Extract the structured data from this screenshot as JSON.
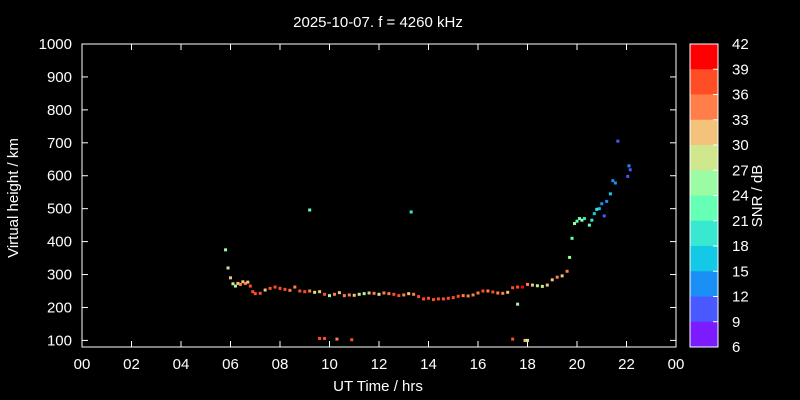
{
  "chart_data": {
    "type": "scatter",
    "title": "2025-10-07. f = 4260 kHz",
    "xlabel": "UT Time / hrs",
    "ylabel": "Virtual height / km",
    "xlim": [
      0,
      24
    ],
    "ylim": [
      80,
      1000
    ],
    "x_ticks": [
      "00",
      "02",
      "04",
      "06",
      "08",
      "10",
      "12",
      "14",
      "16",
      "18",
      "20",
      "22",
      "00"
    ],
    "y_ticks": [
      100,
      200,
      300,
      400,
      500,
      600,
      700,
      800,
      900,
      1000
    ],
    "colorbar": {
      "label": "SNR / dB",
      "min": 6,
      "max": 42,
      "ticks": [
        42,
        39,
        36,
        33,
        30,
        27,
        24,
        21,
        18,
        15,
        12,
        9,
        6
      ],
      "colors": [
        "#ff0000",
        "#ff4d26",
        "#ff7e4a",
        "#f4c27a",
        "#cfe88e",
        "#9cfca4",
        "#66ffb6",
        "#38e8d0",
        "#14c9e6",
        "#1a8ff6",
        "#4a58ff",
        "#7a1cff"
      ]
    },
    "grid": false,
    "legend": "colorbar-right",
    "points": [
      [
        5.8,
        375,
        26
      ],
      [
        5.9,
        320,
        28
      ],
      [
        6.0,
        290,
        30
      ],
      [
        6.1,
        272,
        27
      ],
      [
        6.2,
        265,
        25
      ],
      [
        6.3,
        273,
        30
      ],
      [
        6.4,
        270,
        33
      ],
      [
        6.5,
        278,
        32
      ],
      [
        6.6,
        273,
        35
      ],
      [
        6.7,
        277,
        32
      ],
      [
        6.8,
        265,
        36
      ],
      [
        6.9,
        248,
        38
      ],
      [
        7.0,
        242,
        37
      ],
      [
        7.2,
        243,
        36
      ],
      [
        7.4,
        253,
        31
      ],
      [
        7.6,
        258,
        36
      ],
      [
        7.8,
        262,
        38
      ],
      [
        8.0,
        258,
        36
      ],
      [
        8.2,
        255,
        37
      ],
      [
        8.4,
        252,
        35
      ],
      [
        8.6,
        262,
        33
      ],
      [
        8.8,
        250,
        36
      ],
      [
        9.0,
        248,
        38
      ],
      [
        9.2,
        250,
        35
      ],
      [
        9.4,
        246,
        28
      ],
      [
        9.6,
        248,
        32
      ],
      [
        9.8,
        240,
        36
      ],
      [
        10.0,
        236,
        26
      ],
      [
        10.2,
        240,
        33
      ],
      [
        10.4,
        245,
        30
      ],
      [
        10.6,
        236,
        34
      ],
      [
        10.8,
        238,
        33
      ],
      [
        11.0,
        237,
        30
      ],
      [
        11.2,
        240,
        27
      ],
      [
        11.4,
        242,
        26
      ],
      [
        11.6,
        244,
        30
      ],
      [
        11.8,
        243,
        33
      ],
      [
        12.0,
        240,
        28
      ],
      [
        12.2,
        244,
        35
      ],
      [
        12.4,
        242,
        33
      ],
      [
        12.6,
        240,
        36
      ],
      [
        12.8,
        236,
        37
      ],
      [
        13.0,
        238,
        35
      ],
      [
        13.2,
        242,
        30
      ],
      [
        13.4,
        240,
        33
      ],
      [
        13.6,
        233,
        36
      ],
      [
        13.8,
        226,
        38
      ],
      [
        14.0,
        228,
        37
      ],
      [
        14.2,
        224,
        38
      ],
      [
        14.4,
        226,
        37
      ],
      [
        14.6,
        226,
        38
      ],
      [
        14.8,
        228,
        37
      ],
      [
        15.0,
        230,
        36
      ],
      [
        15.2,
        234,
        37
      ],
      [
        15.4,
        236,
        35
      ],
      [
        15.6,
        235,
        34
      ],
      [
        15.8,
        238,
        33
      ],
      [
        16.0,
        244,
        35
      ],
      [
        16.2,
        250,
        36
      ],
      [
        16.4,
        250,
        33
      ],
      [
        16.6,
        247,
        36
      ],
      [
        16.8,
        244,
        35
      ],
      [
        17.0,
        243,
        33
      ],
      [
        17.2,
        246,
        30
      ],
      [
        17.4,
        260,
        37
      ],
      [
        17.6,
        262,
        38
      ],
      [
        17.8,
        262,
        39
      ],
      [
        18.0,
        270,
        33
      ],
      [
        18.2,
        268,
        30
      ],
      [
        18.4,
        266,
        29
      ],
      [
        18.6,
        264,
        28
      ],
      [
        18.8,
        268,
        32
      ],
      [
        19.0,
        284,
        32
      ],
      [
        19.2,
        292,
        33
      ],
      [
        19.4,
        296,
        32
      ],
      [
        19.6,
        310,
        35
      ],
      [
        19.7,
        352,
        25
      ],
      [
        19.8,
        410,
        22
      ],
      [
        19.9,
        455,
        24
      ],
      [
        20.0,
        462,
        22
      ],
      [
        20.1,
        470,
        21
      ],
      [
        20.2,
        465,
        24
      ],
      [
        20.3,
        470,
        20
      ],
      [
        20.5,
        450,
        22
      ],
      [
        20.6,
        465,
        18
      ],
      [
        20.7,
        485,
        15
      ],
      [
        20.8,
        498,
        20
      ],
      [
        20.9,
        500,
        16
      ],
      [
        21.0,
        515,
        12
      ],
      [
        21.1,
        478,
        10
      ],
      [
        21.2,
        522,
        14
      ],
      [
        21.35,
        545,
        15
      ],
      [
        21.45,
        585,
        14
      ],
      [
        21.55,
        578,
        13
      ],
      [
        21.65,
        705,
        11
      ],
      [
        22.05,
        598,
        11
      ],
      [
        22.1,
        630,
        12
      ],
      [
        22.15,
        618,
        10
      ],
      [
        9.2,
        496,
        23
      ],
      [
        13.3,
        490,
        20
      ],
      [
        17.6,
        210,
        24
      ],
      [
        9.6,
        106,
        37
      ],
      [
        9.8,
        106,
        36
      ],
      [
        10.3,
        104,
        35
      ],
      [
        10.9,
        102,
        37
      ],
      [
        17.4,
        104,
        36
      ],
      [
        17.9,
        100,
        30
      ],
      [
        18.0,
        100,
        28
      ]
    ]
  }
}
